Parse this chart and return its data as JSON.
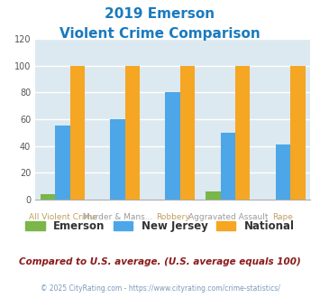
{
  "title_line1": "2019 Emerson",
  "title_line2": "Violent Crime Comparison",
  "title_color": "#1a7abf",
  "cat_top": [
    "",
    "Murder & Mans...",
    "",
    "Aggravated Assault",
    ""
  ],
  "cat_bottom": [
    "All Violent Crime",
    "",
    "Robbery",
    "",
    "Rape"
  ],
  "cat_top_color": "#9b9b9b",
  "cat_bottom_color": "#c0a060",
  "emerson_values": [
    4,
    0,
    0,
    6,
    0
  ],
  "nj_values": [
    55,
    60,
    80,
    50,
    41
  ],
  "national_values": [
    100,
    100,
    100,
    100,
    100
  ],
  "emerson_color": "#7ab648",
  "nj_color": "#4da6e8",
  "national_color": "#f5a623",
  "ylim": [
    0,
    120
  ],
  "yticks": [
    0,
    20,
    40,
    60,
    80,
    100,
    120
  ],
  "plot_bg_color": "#dce9f0",
  "grid_color": "#ffffff",
  "legend_labels": [
    "Emerson",
    "New Jersey",
    "National"
  ],
  "legend_text_color": "#333333",
  "footnote1": "Compared to U.S. average. (U.S. average equals 100)",
  "footnote2": "© 2025 CityRating.com - https://www.cityrating.com/crime-statistics/",
  "footnote1_color": "#8b1a1a",
  "footnote2_color": "#7a9abf",
  "bar_width": 0.27
}
